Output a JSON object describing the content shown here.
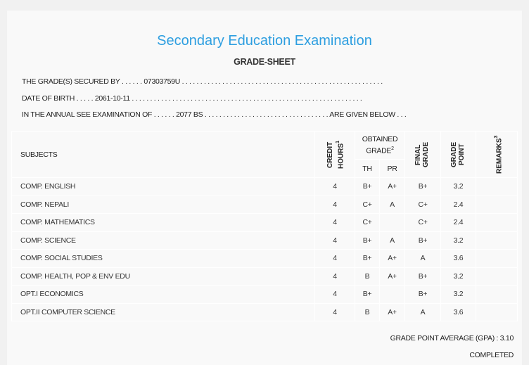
{
  "header": {
    "title": "Secondary Education Examination",
    "subtitle": "GRADE-SHEET"
  },
  "info": {
    "line1": "THE GRADE(S) SECURED BY . . . . . . 07303759U . . . . . . . . . . . . . . . . . . . . . . . . . . . . . . . . . . . . . . . . . . . . . . . . . . . . . . .",
    "line2": "DATE OF BIRTH . . . . . 2061-10-11 . . . . . . . . . . . . . . . . . . . . . . . . . . . . . . . . . . . . . . . . . . . . . . . . . . . . . . . . . . . . . . .",
    "line3": "IN THE ANNUAL SEE EXAMINATION OF . . . . . . 2077 BS . . . . . . . . . . . . . . . . . . . . . . . . . . . . . . . . . . ARE GIVEN BELOW . . ."
  },
  "table": {
    "headers": {
      "subjects": "SUBJECTS",
      "credit": "CREDIT HOURS",
      "credit_sup": "1",
      "obtained": "OBTAINED GRADE",
      "obtained_sup": "2",
      "th": "TH",
      "pr": "PR",
      "final": "FINAL GRADE",
      "point": "GRADE POINT",
      "remarks": "REMARKS",
      "remarks_sup": "3"
    },
    "rows": [
      {
        "subject": "COMP. ENGLISH",
        "credit": "4",
        "th": "B+",
        "pr": "A+",
        "final": "B+",
        "point": "3.2",
        "remarks": ""
      },
      {
        "subject": "COMP. NEPALI",
        "credit": "4",
        "th": "C+",
        "pr": "A",
        "final": "C+",
        "point": "2.4",
        "remarks": ""
      },
      {
        "subject": "COMP. MATHEMATICS",
        "credit": "4",
        "th": "C+",
        "pr": "",
        "final": "C+",
        "point": "2.4",
        "remarks": ""
      },
      {
        "subject": "COMP. SCIENCE",
        "credit": "4",
        "th": "B+",
        "pr": "A",
        "final": "B+",
        "point": "3.2",
        "remarks": ""
      },
      {
        "subject": "COMP. SOCIAL STUDIES",
        "credit": "4",
        "th": "B+",
        "pr": "A+",
        "final": "A",
        "point": "3.6",
        "remarks": ""
      },
      {
        "subject": "COMP. HEALTH, POP & ENV EDU",
        "credit": "4",
        "th": "B",
        "pr": "A+",
        "final": "B+",
        "point": "3.2",
        "remarks": ""
      },
      {
        "subject": "OPT.I ECONOMICS",
        "credit": "4",
        "th": "B+",
        "pr": "",
        "final": "B+",
        "point": "3.2",
        "remarks": ""
      },
      {
        "subject": "OPT.II COMPUTER SCIENCE",
        "credit": "4",
        "th": "B",
        "pr": "A+",
        "final": "A",
        "point": "3.6",
        "remarks": ""
      }
    ]
  },
  "footer": {
    "gpa": "GRADE POINT AVERAGE (GPA) : 3.10",
    "status": "COMPLETED"
  }
}
